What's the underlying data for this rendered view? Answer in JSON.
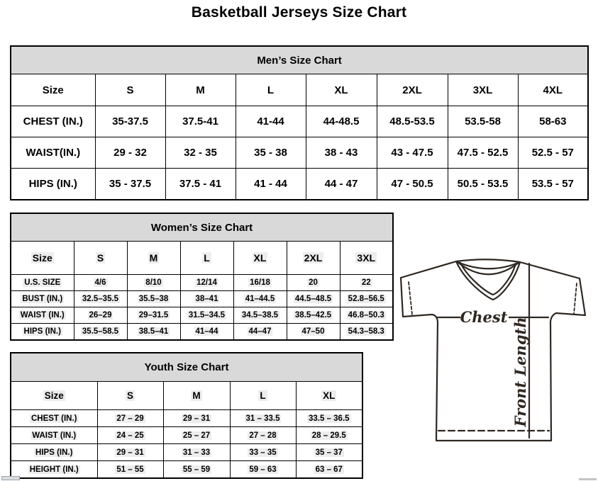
{
  "title": "Basketball Jerseys Size Chart",
  "mens": {
    "title": "Men’s Size Chart",
    "columns": [
      "Size",
      "S",
      "M",
      "L",
      "XL",
      "2XL",
      "3XL",
      "4XL"
    ],
    "rows": [
      {
        "label": "CHEST (IN.)",
        "values": [
          "35-37.5",
          "37.5-41",
          "41-44",
          "44-48.5",
          "48.5-53.5",
          "53.5-58",
          "58-63"
        ]
      },
      {
        "label": "WAIST(IN.)",
        "values": [
          "29 - 32",
          "32 - 35",
          "35 - 38",
          "38 - 43",
          "43 - 47.5",
          "47.5 - 52.5",
          "52.5 - 57"
        ]
      },
      {
        "label": "HIPS (IN.)",
        "values": [
          "35 - 37.5",
          "37.5 - 41",
          "41 - 44",
          "44 - 47",
          "47 - 50.5",
          "50.5 - 53.5",
          "53.5 - 57"
        ]
      }
    ]
  },
  "womens": {
    "title": "Women’s Size Chart",
    "columns": [
      "Size",
      "S",
      "M",
      "L",
      "XL",
      "2XL",
      "3XL"
    ],
    "rows": [
      {
        "label": "U.S. SIZE",
        "values": [
          "4/6",
          "8/10",
          "12/14",
          "16/18",
          "20",
          "22"
        ]
      },
      {
        "label": "BUST (IN.)",
        "values": [
          "32.5–35.5",
          "35.5–38",
          "38–41",
          "41–44.5",
          "44.5–48.5",
          "52.8–56.5"
        ]
      },
      {
        "label": "WAIST (IN.)",
        "values": [
          "26–29",
          "29–31.5",
          "31.5–34.5",
          "34.5–38.5",
          "38.5–42.5",
          "46.8–50.3"
        ]
      },
      {
        "label": "HIPS (IN.)",
        "values": [
          "35.5–58.5",
          "38.5–41",
          "41–44",
          "44–47",
          "47–50",
          "54.3–58.3"
        ]
      }
    ]
  },
  "youth": {
    "title": "Youth Size Chart",
    "columns": [
      "Size",
      "S",
      "M",
      "L",
      "XL"
    ],
    "rows": [
      {
        "label": "CHEST (IN.)",
        "values": [
          "27 – 29",
          "29 – 31",
          "31 – 33.5",
          "33.5 – 36.5"
        ]
      },
      {
        "label": "WAIST (IN.)",
        "values": [
          "24 – 25",
          "25 – 27",
          "27 – 28",
          "28 – 29.5"
        ]
      },
      {
        "label": "HIPS (IN.)",
        "values": [
          "29 – 31",
          "31 – 33",
          "33 – 35",
          "35 – 37"
        ]
      },
      {
        "label": "HEIGHT (IN.)",
        "values": [
          "51 – 55",
          "55 – 59",
          "59 – 63",
          "63 – 67"
        ]
      }
    ]
  },
  "diagram": {
    "chest_label": "Chest",
    "front_length_label": "Front Length"
  },
  "colors": {
    "header_bg": "#d9d9d9",
    "table_border": "#000000",
    "row_highlight": "#ededed",
    "jersey_line": "#2f2721"
  }
}
